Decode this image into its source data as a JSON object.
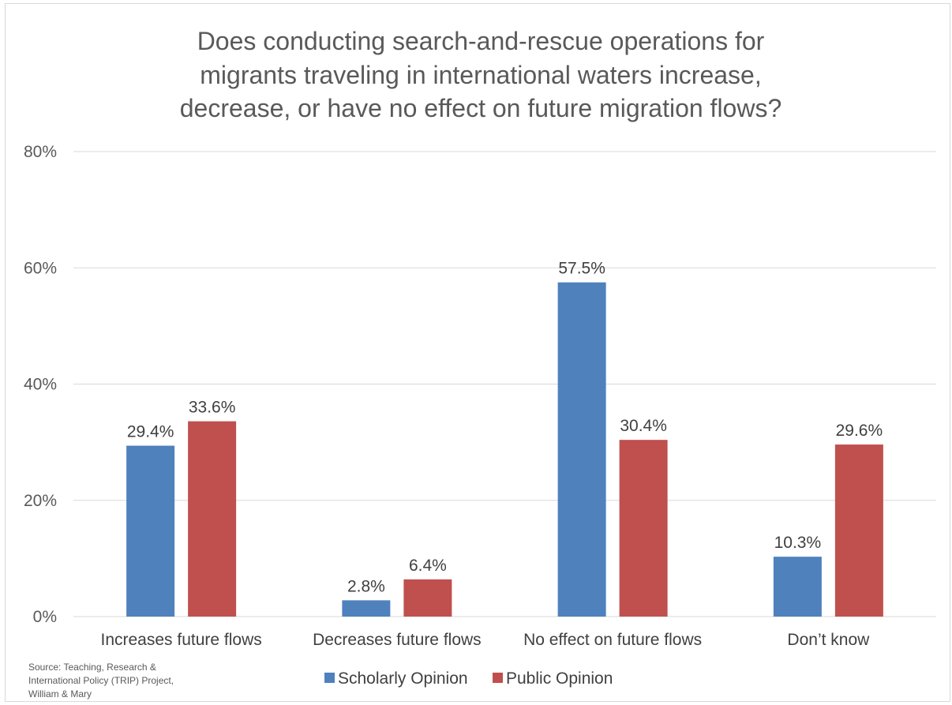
{
  "title_lines": [
    "Does conducting search-and-rescue operations for",
    "migrants traveling in international waters increase,",
    "decrease, or have no effect on future migration flows?"
  ],
  "source_lines": [
    "Source: Teaching, Research &",
    "International Policy (TRIP) Project,",
    "William & Mary"
  ],
  "chart_data": {
    "type": "bar",
    "title": "Does conducting search-and-rescue operations for migrants traveling in international waters increase, decrease, or have no effect on future migration flows?",
    "categories": [
      "Increases future flows",
      "Decreases future flows",
      "No effect on future flows",
      "Don’t know"
    ],
    "series": [
      {
        "name": "Scholarly Opinion",
        "color": "#4f81bd",
        "values": [
          29.4,
          2.8,
          57.5,
          10.3
        ],
        "labels": [
          "29.4%",
          "2.8%",
          "57.5%",
          "10.3%"
        ]
      },
      {
        "name": "Public Opinion",
        "color": "#c0504d",
        "values": [
          33.6,
          6.4,
          30.4,
          29.6
        ],
        "labels": [
          "33.6%",
          "6.4%",
          "30.4%",
          "29.6%"
        ]
      }
    ],
    "ylim": [
      0,
      80
    ],
    "yticks": [
      0,
      20,
      40,
      60,
      80
    ],
    "ytick_labels": [
      "0%",
      "20%",
      "40%",
      "60%",
      "80%"
    ],
    "grid": true,
    "legend": "bottom"
  }
}
